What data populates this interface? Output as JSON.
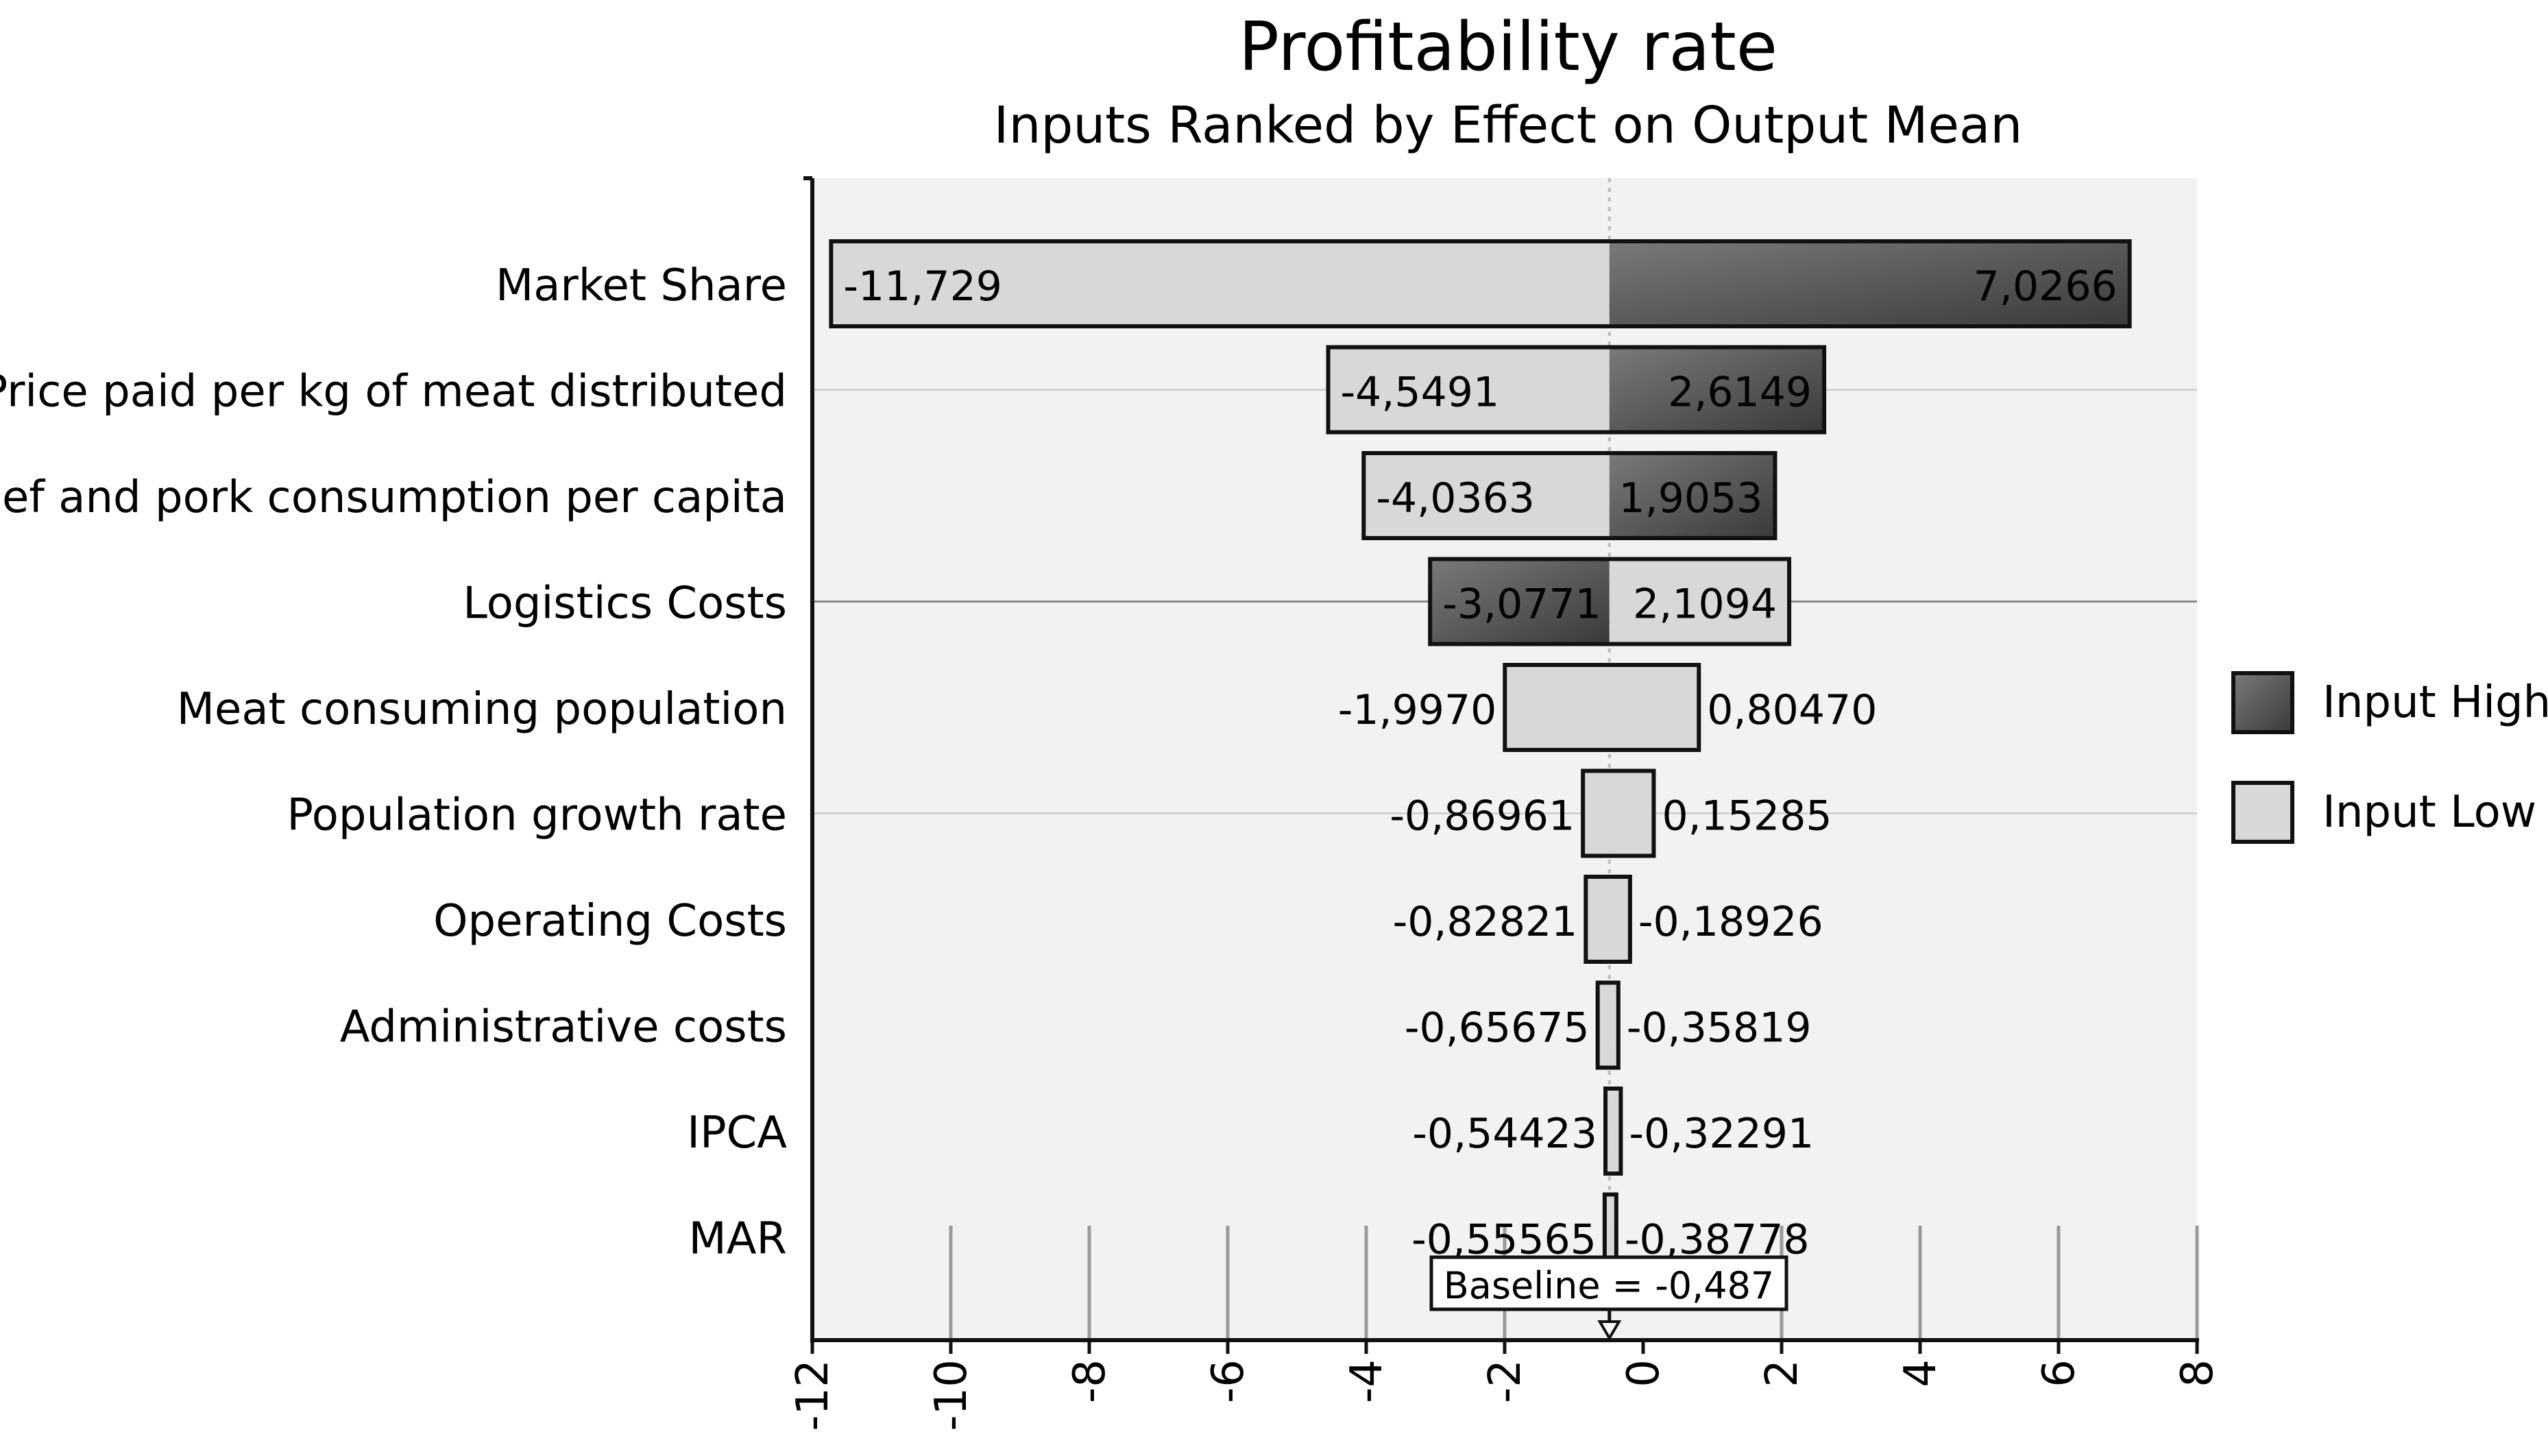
{
  "chart_data": {
    "type": "bar",
    "orientation": "horizontal",
    "subtype": "tornado",
    "title": "Profitability rate",
    "subtitle": "Inputs Ranked by Effect on Output Mean",
    "baseline": -0.487,
    "baseline_label": "Baseline = -0,487",
    "xlim": [
      -12,
      8
    ],
    "xticks": [
      "-12",
      "-10",
      "-8",
      "-6",
      "-4",
      "-2",
      "0",
      "2",
      "4",
      "6",
      "8"
    ],
    "grid": "horizontal lines at selected rows, vertical dashed lines near axis",
    "legend_position": "right",
    "legend": [
      {
        "label": "Input High",
        "color": "#555555"
      },
      {
        "label": "Input Low",
        "color": "#d8d8d8"
      }
    ],
    "categories": [
      "Market Share",
      "Price paid per kg of meat distributed",
      "Beef and pork consumption per capita",
      "Logistics Costs",
      "Meat consuming population",
      "Population growth rate",
      "Operating Costs",
      "Administrative costs",
      "IPCA",
      "MAR"
    ],
    "bars": [
      {
        "low": -11.729,
        "high": 7.0266,
        "low_label": "-11,729",
        "high_label": "7,0266",
        "left_input": "low",
        "right_input": "high"
      },
      {
        "low": -4.5491,
        "high": 2.6149,
        "low_label": "-4,5491",
        "high_label": "2,6149",
        "left_input": "low",
        "right_input": "high"
      },
      {
        "low": -4.0363,
        "high": 1.9053,
        "low_label": "-4,0363",
        "high_label": "1,9053",
        "left_input": "low",
        "right_input": "high"
      },
      {
        "low": -3.0771,
        "high": 2.1094,
        "low_label": "-3,0771",
        "high_label": "2,1094",
        "left_input": "high",
        "right_input": "low"
      },
      {
        "low": -1.997,
        "high": 0.8047,
        "low_label": "-1,9970",
        "high_label": "0,80470",
        "left_input": "low",
        "right_input": "low"
      },
      {
        "low": -0.86961,
        "high": 0.15285,
        "low_label": "-0,86961",
        "high_label": "0,15285",
        "left_input": "low",
        "right_input": "low"
      },
      {
        "low": -0.82821,
        "high": -0.18926,
        "low_label": "-0,82821",
        "high_label": "-0,18926",
        "left_input": "low",
        "right_input": "low"
      },
      {
        "low": -0.65675,
        "high": -0.35819,
        "low_label": "-0,65675",
        "high_label": "-0,35819",
        "left_input": "low",
        "right_input": "low"
      },
      {
        "low": -0.54423,
        "high": -0.32291,
        "low_label": "-0,54423",
        "high_label": "-0,32291",
        "left_input": "low",
        "right_input": "low"
      },
      {
        "low": -0.55565,
        "high": -0.38778,
        "low_label": "-0,55565",
        "high_label": "-0,38778",
        "left_input": "low",
        "right_input": "low"
      }
    ]
  }
}
